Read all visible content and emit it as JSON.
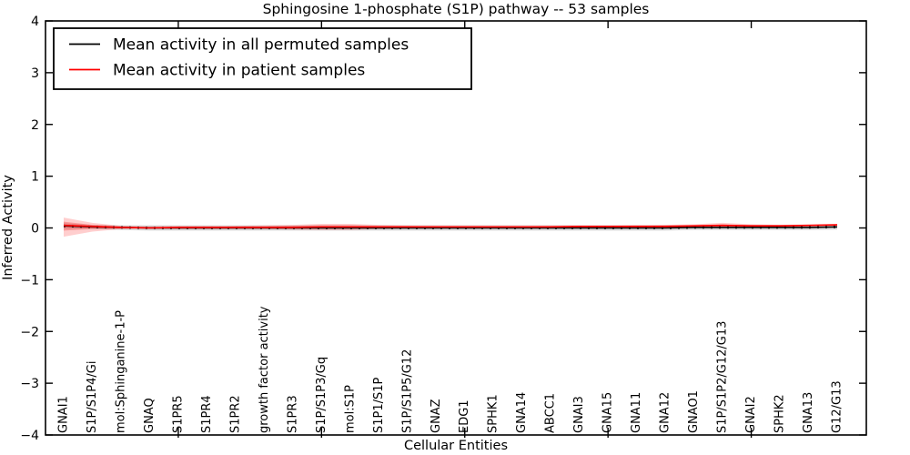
{
  "figure": {
    "title": "Sphingosine 1-phosphate (S1P) pathway -- 53 samples",
    "xlabel": "Cellular Entities",
    "ylabel": "Inferred Activity"
  },
  "legend": {
    "position": "upper left",
    "entries": [
      {
        "label": "Mean activity in all permuted samples",
        "color": "#000000"
      },
      {
        "label": "Mean activity in patient samples",
        "color": "#ff0000"
      }
    ]
  },
  "chart_data": {
    "type": "line",
    "title": "Sphingosine 1-phosphate (S1P) pathway -- 53 samples",
    "xlabel": "Cellular Entities",
    "ylabel": "Inferred Activity",
    "ylim": [
      -4,
      4
    ],
    "grid": false,
    "legend_position": "upper left",
    "ytick_labels": [
      "4",
      "3",
      "2",
      "1",
      "0",
      "−1",
      "−2",
      "−3",
      "−4"
    ],
    "ytick_values": [
      4,
      3,
      2,
      1,
      0,
      -1,
      -2,
      -3,
      -4
    ],
    "xticks_major_positions": [
      5,
      10,
      15,
      20,
      25
    ],
    "categories": [
      "GNAI1",
      "S1P/S1P4/Gi",
      "mol:Sphinganine-1-P",
      "GNAQ",
      "S1PR5",
      "S1PR4",
      "S1PR2",
      "growth factor activity",
      "S1PR3",
      "S1P/S1P3/Gq",
      "mol:S1P",
      "S1P1/S1P",
      "S1P/S1P5/G12",
      "GNAZ",
      "EDG1",
      "SPHK1",
      "GNA14",
      "ABCC1",
      "GNAI3",
      "GNA15",
      "GNA11",
      "GNA12",
      "GNAO1",
      "S1P/S1P2/G12/G13",
      "GNAI2",
      "SPHK2",
      "GNA13",
      "G12/G13"
    ],
    "series": [
      {
        "name": "Mean activity in all permuted samples",
        "color": "#000000",
        "style": "solid-with-dots",
        "values": [
          0.04,
          0.02,
          0.01,
          0,
          0,
          0,
          0,
          0,
          0,
          0,
          0,
          0,
          0,
          0,
          0,
          0,
          0,
          0,
          0,
          0,
          0,
          0,
          0.01,
          0.01,
          0.01,
          0.01,
          0.01,
          0.02
        ]
      },
      {
        "name": "Mean activity in patient samples",
        "color": "#ff0000",
        "style": "solid",
        "values": [
          0.05,
          0.03,
          0.01,
          0,
          0.01,
          0.01,
          0.01,
          0.01,
          0.01,
          0.02,
          0.02,
          0.02,
          0.02,
          0.02,
          0.02,
          0.02,
          0.02,
          0.02,
          0.03,
          0.03,
          0.03,
          0.03,
          0.04,
          0.05,
          0.04,
          0.04,
          0.05,
          0.06
        ]
      }
    ],
    "bands": [
      {
        "name": "permuted-samples-band",
        "color": "#999999",
        "opacity": 0.38,
        "upper": [
          0.09,
          0.06,
          0.05,
          0.05,
          0.05,
          0.05,
          0.05,
          0.05,
          0.05,
          0.05,
          0.05,
          0.05,
          0.05,
          0.05,
          0.05,
          0.05,
          0.05,
          0.05,
          0.05,
          0.05,
          0.05,
          0.05,
          0.05,
          0.06,
          0.06,
          0.06,
          0.06,
          0.06
        ],
        "lower": [
          -0.01,
          -0.02,
          -0.04,
          -0.05,
          -0.05,
          -0.05,
          -0.05,
          -0.05,
          -0.05,
          -0.05,
          -0.05,
          -0.05,
          -0.05,
          -0.05,
          -0.05,
          -0.05,
          -0.05,
          -0.05,
          -0.05,
          -0.05,
          -0.05,
          -0.05,
          -0.04,
          -0.04,
          -0.04,
          -0.04,
          -0.04,
          -0.03
        ]
      },
      {
        "name": "patient-samples-outer-band",
        "color": "#ff3b3b",
        "opacity": 0.25,
        "upper": [
          0.2,
          0.1,
          0.04,
          0.03,
          0.04,
          0.04,
          0.04,
          0.05,
          0.06,
          0.08,
          0.08,
          0.06,
          0.05,
          0.05,
          0.05,
          0.05,
          0.05,
          0.05,
          0.05,
          0.05,
          0.06,
          0.06,
          0.07,
          0.1,
          0.07,
          0.06,
          0.07,
          0.08
        ],
        "lower": [
          -0.17,
          -0.07,
          -0.02,
          -0.01,
          -0.02,
          -0.02,
          -0.02,
          -0.02,
          -0.03,
          -0.04,
          -0.04,
          -0.02,
          -0.01,
          -0.01,
          -0.01,
          -0.01,
          -0.01,
          -0.01,
          0.0,
          0.0,
          0.0,
          0.01,
          0.01,
          0.01,
          0.01,
          0.02,
          0.03,
          0.04
        ]
      },
      {
        "name": "patient-samples-inner-band",
        "color": "#ee2222",
        "opacity": 0.32,
        "upper": [
          0.12,
          0.06,
          0.03,
          0.02,
          0.02,
          0.02,
          0.03,
          0.03,
          0.04,
          0.05,
          0.05,
          0.04,
          0.04,
          0.03,
          0.03,
          0.03,
          0.03,
          0.04,
          0.04,
          0.04,
          0.04,
          0.05,
          0.05,
          0.07,
          0.05,
          0.05,
          0.06,
          0.07
        ],
        "lower": [
          -0.05,
          -0.02,
          -0.01,
          0.0,
          0.0,
          0.0,
          0.0,
          0.0,
          -0.01,
          -0.01,
          -0.01,
          0.0,
          0.0,
          0.0,
          0.01,
          0.01,
          0.01,
          0.01,
          0.01,
          0.01,
          0.02,
          0.02,
          0.02,
          0.03,
          0.03,
          0.03,
          0.04,
          0.05
        ]
      }
    ]
  }
}
